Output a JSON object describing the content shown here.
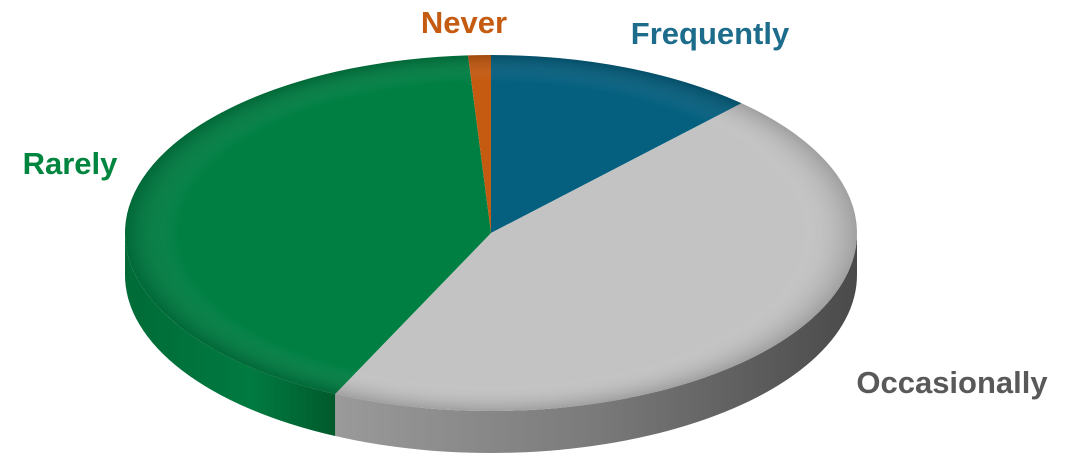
{
  "chart_data": {
    "type": "pie",
    "style": "3d",
    "title": "",
    "legend": "none",
    "slices": [
      {
        "label": "Frequently",
        "value": 12,
        "color": "#05607f"
      },
      {
        "label": "Occasionally",
        "value": 45,
        "color": "#c3c3c3"
      },
      {
        "label": "Rarely",
        "value": 42,
        "color": "#007f43"
      },
      {
        "label": "Never",
        "value": 1,
        "color": "#c55a11"
      }
    ],
    "label_colors": {
      "Frequently": "#1d6c8c",
      "Occasionally": "#595959",
      "Rarely": "#00853f",
      "Never": "#c55a11"
    }
  }
}
